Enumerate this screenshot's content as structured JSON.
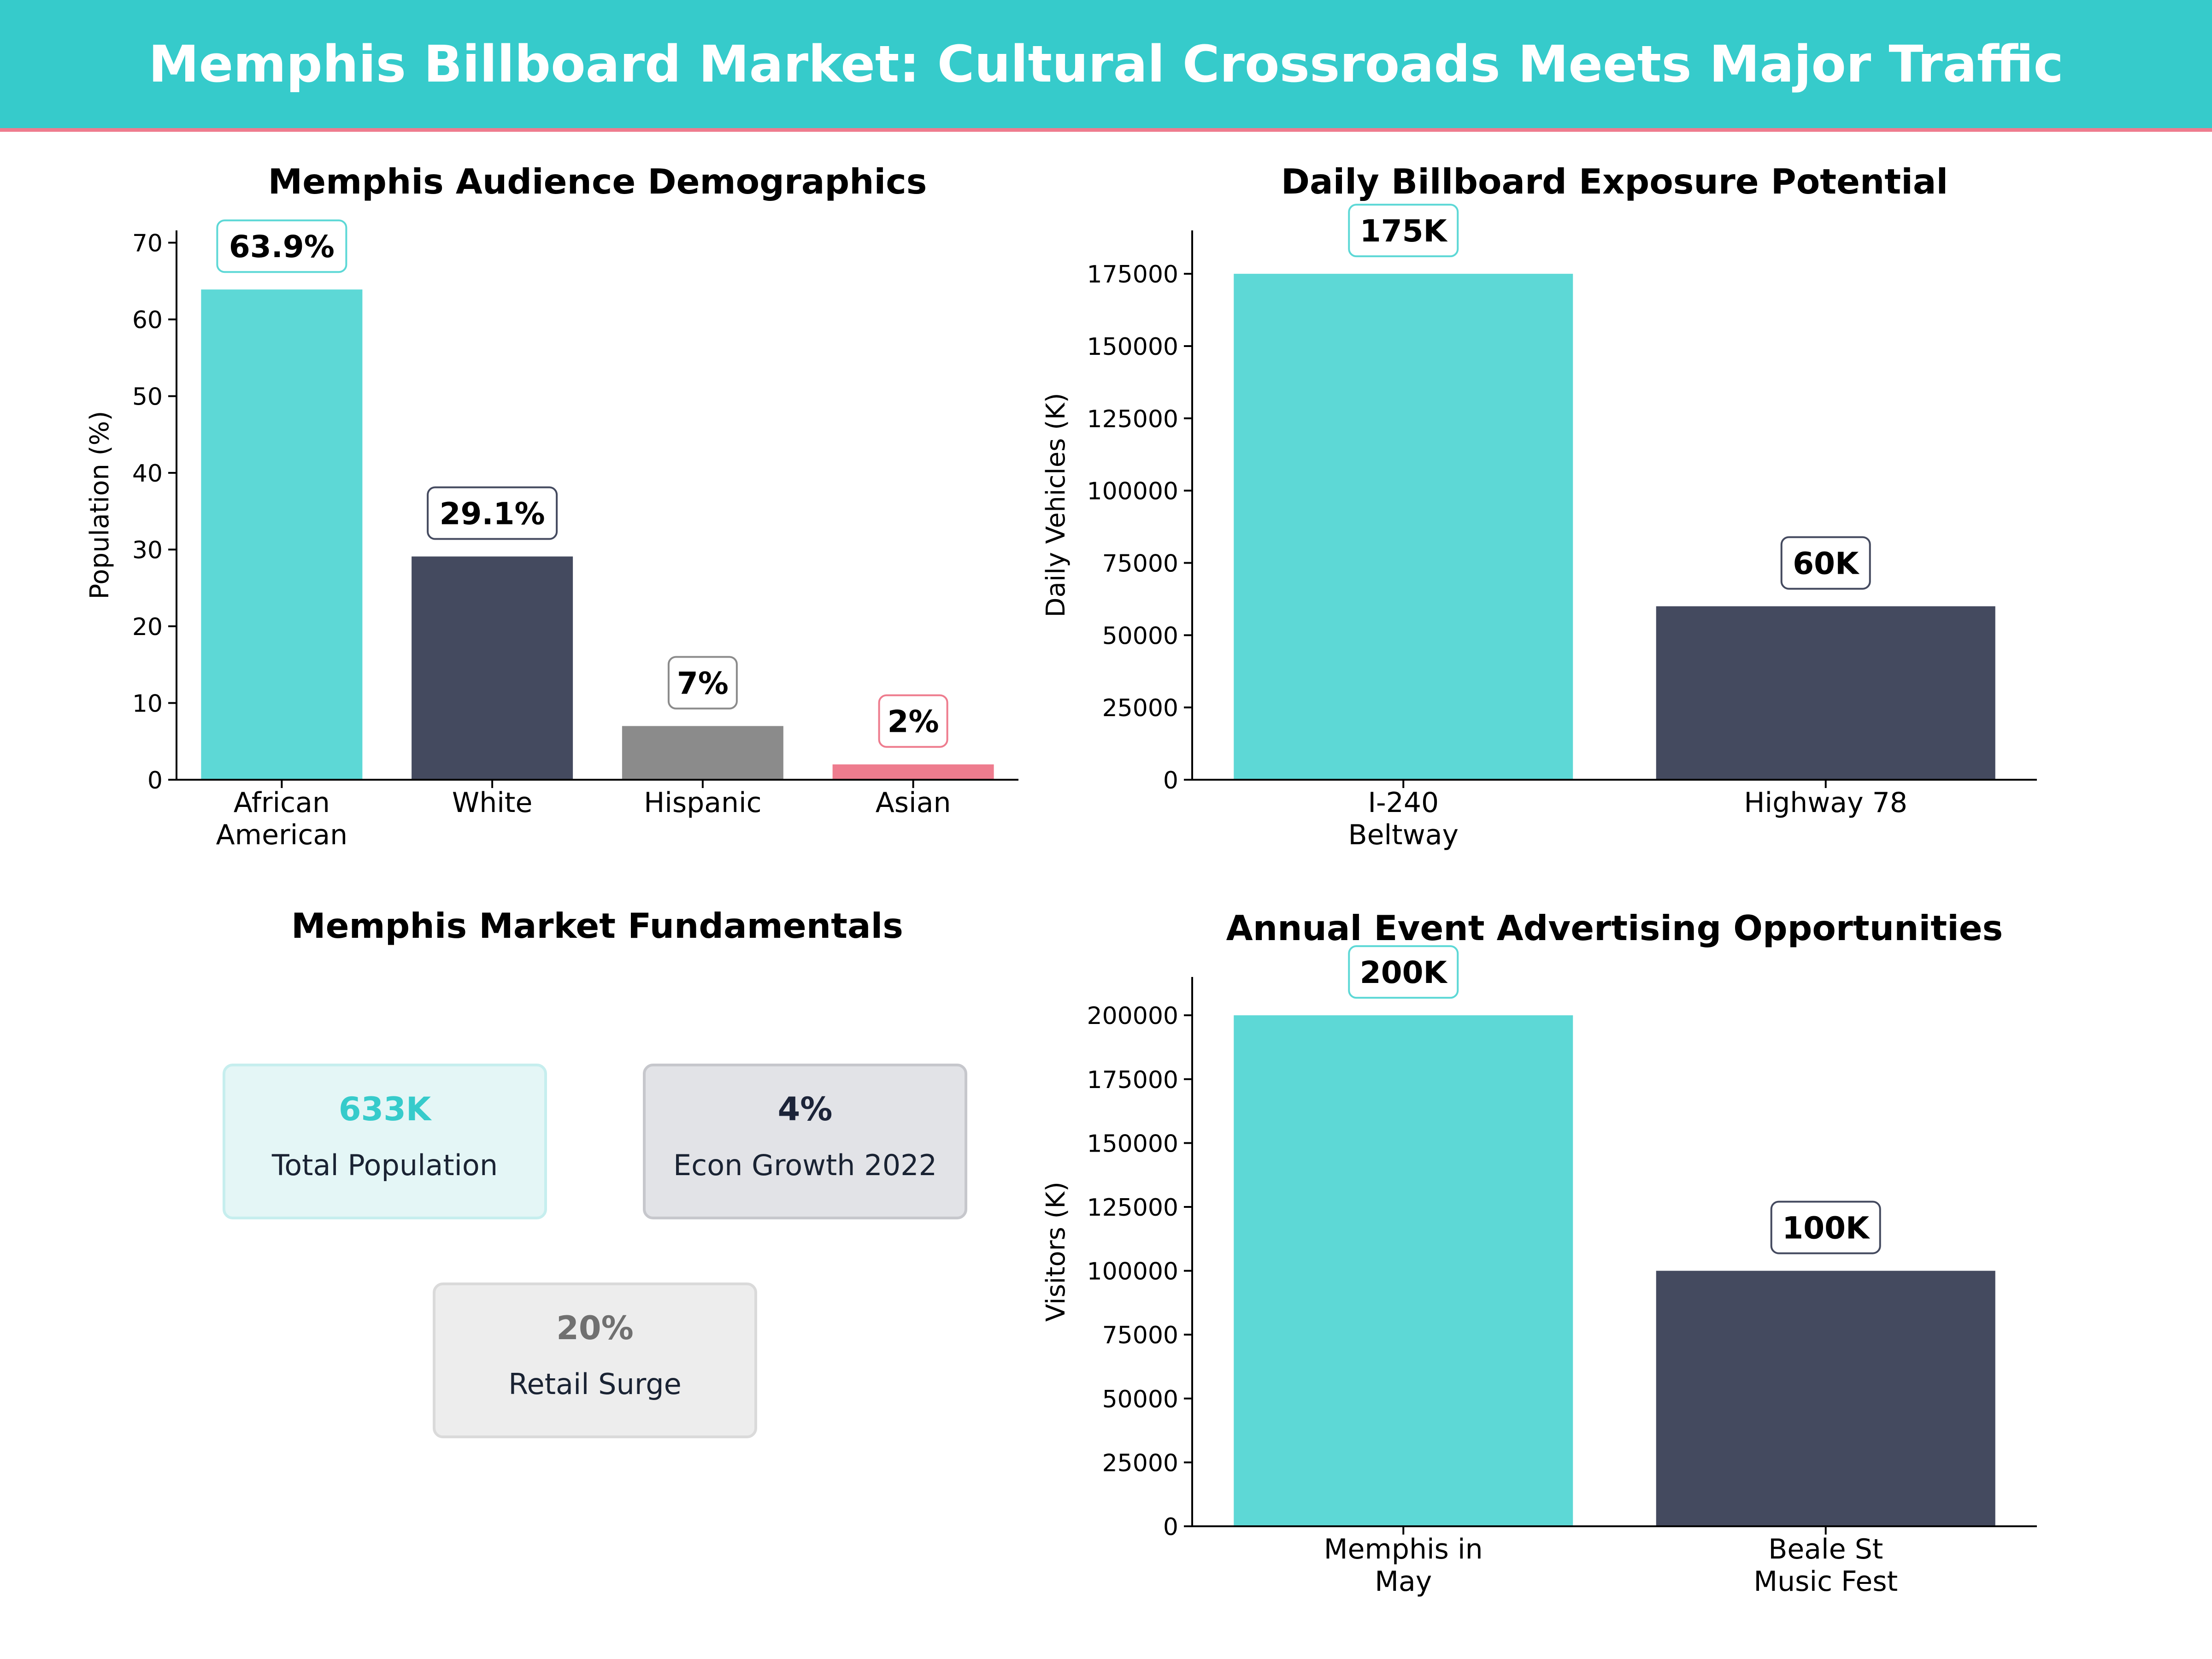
{
  "header": {
    "title": "Memphis Billboard Market: Cultural Crossroads Meets Major Traffic"
  },
  "colors": {
    "teal": "#5DD8D6",
    "navy": "#444A5F",
    "gray": "#8B8B8B",
    "pink": "#EE7C8E",
    "banner": "#36CBCB"
  },
  "chart_data": [
    {
      "id": "demographics",
      "type": "bar",
      "title": "Memphis Audience Demographics",
      "xlabel": "",
      "ylabel": "Population (%)",
      "categories": [
        [
          "African",
          "American"
        ],
        [
          "White"
        ],
        [
          "Hispanic"
        ],
        [
          "Asian"
        ]
      ],
      "values": [
        63.9,
        29.1,
        7,
        2
      ],
      "value_labels": [
        "63.9%",
        "29.1%",
        "7%",
        "2%"
      ],
      "bar_colors": [
        "#5DD8D6",
        "#444A5F",
        "#8B8B8B",
        "#EE7C8E"
      ],
      "ylim": [
        0,
        71.6
      ],
      "yticks": [
        0,
        10,
        20,
        30,
        40,
        50,
        60,
        70
      ],
      "grid": false
    },
    {
      "id": "exposure",
      "type": "bar",
      "title": "Daily Billboard Exposure Potential",
      "xlabel": "",
      "ylabel": "Daily Vehicles (K)",
      "categories": [
        [
          "I-240",
          "Beltway"
        ],
        [
          "Highway 78"
        ]
      ],
      "values": [
        175000,
        60000
      ],
      "value_labels": [
        "175K",
        "60K"
      ],
      "bar_colors": [
        "#5DD8D6",
        "#444A5F"
      ],
      "ylim": [
        0,
        190000
      ],
      "yticks": [
        0,
        25000,
        50000,
        75000,
        100000,
        125000,
        150000,
        175000
      ],
      "grid": false
    },
    {
      "id": "events",
      "type": "bar",
      "title": "Annual Event Advertising Opportunities",
      "xlabel": "",
      "ylabel": "Visitors (K)",
      "categories": [
        [
          "Memphis in",
          "May"
        ],
        [
          "Beale St",
          "Music Fest"
        ]
      ],
      "values": [
        200000,
        100000
      ],
      "value_labels": [
        "200K",
        "100K"
      ],
      "bar_colors": [
        "#5DD8D6",
        "#444A5F"
      ],
      "ylim": [
        0,
        215000
      ],
      "yticks": [
        0,
        25000,
        50000,
        75000,
        100000,
        125000,
        150000,
        175000,
        200000
      ],
      "grid": false
    }
  ],
  "fundamentals": {
    "title": "Memphis Market Fundamentals",
    "cards": [
      {
        "value": "633K",
        "label": "Total Population",
        "value_color": "#36CBCB",
        "bg": "#E4F6F6",
        "border": "#C6EEEE"
      },
      {
        "value": "4%",
        "label": "Econ Growth 2022",
        "value_color": "#1C2439",
        "bg": "#E2E3E7",
        "border": "#C6C7CC"
      },
      {
        "value": "20%",
        "label": "Retail Surge",
        "value_color": "#707070",
        "bg": "#EDEDED",
        "border": "#DADADA"
      }
    ]
  }
}
